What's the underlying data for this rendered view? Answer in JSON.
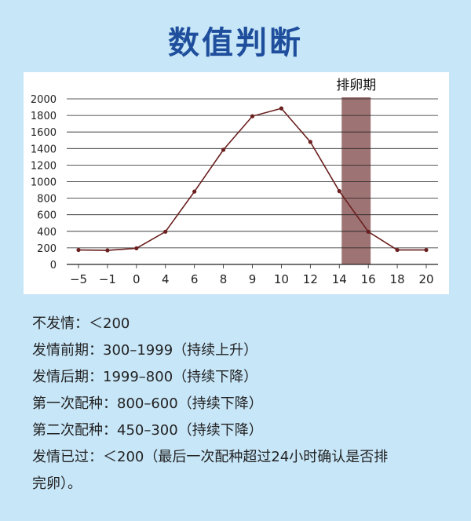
{
  "page_title": "数值判断",
  "chart_data": {
    "type": "line",
    "x": [
      "−5",
      "−1",
      "0",
      "4",
      "6",
      "8",
      "9",
      "10",
      "12",
      "14",
      "16",
      "18",
      "20"
    ],
    "series": [
      {
        "values": [
          175,
          170,
          195,
          395,
          880,
          1385,
          1790,
          1885,
          1480,
          885,
          395,
          175,
          175
        ]
      }
    ],
    "yticks": [
      "0",
      "200",
      "400",
      "600",
      "800",
      "1000",
      "1200",
      "1400",
      "1600",
      "1800",
      "2000"
    ],
    "ylim": [
      0,
      2000
    ],
    "highlight": {
      "label": "排卵期",
      "from": "14",
      "to": "16"
    },
    "grid": "horizontal",
    "line_color": "#6b1f1f",
    "highlight_color": "#9e7373"
  },
  "notes": [
    "不发情：＜200",
    "发情前期：300–1999（持续上升）",
    "发情后期：1999–800（持续下降）",
    "第一次配种：800–600（持续下降）",
    "第二次配种：450–300（持续下降）",
    "发情已过：＜200（最后一次配种超过24小时确认是否排",
    "完卵）。"
  ]
}
